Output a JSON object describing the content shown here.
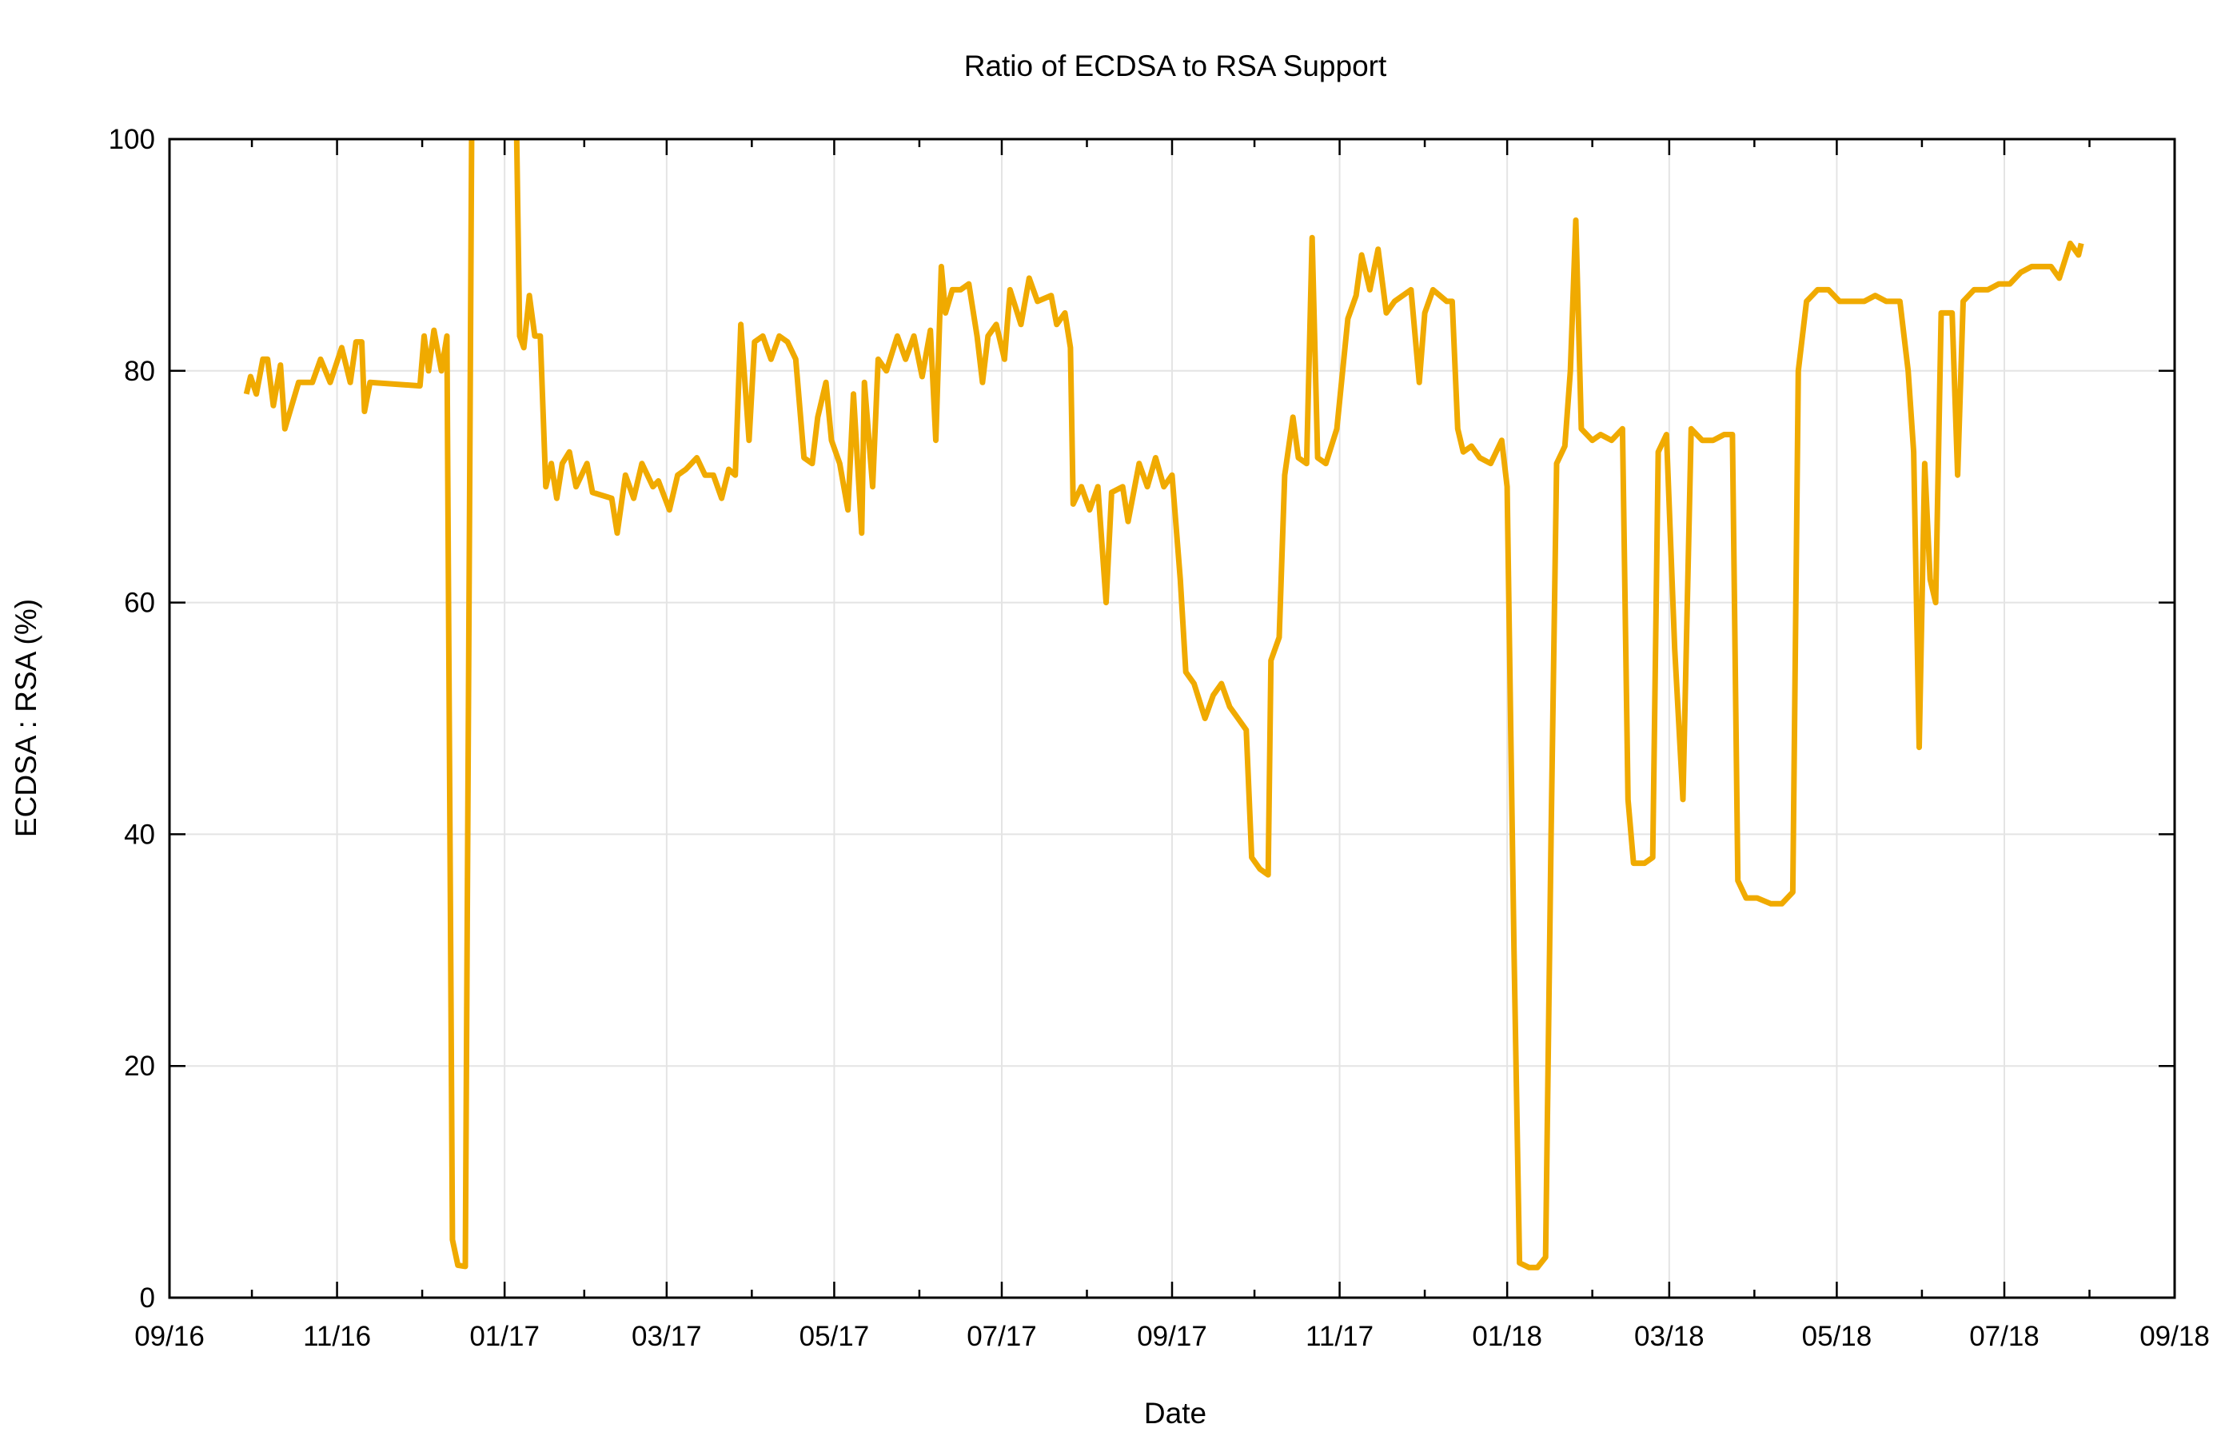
{
  "chart_data": {
    "type": "line",
    "title": "Ratio of ECDSA to RSA Support",
    "xlabel": "Date",
    "ylabel": "ECDSA : RSA (%)",
    "x_units": "days since 09/16 (2016-09-01)",
    "xlim": [
      0,
      730
    ],
    "ylim": [
      0,
      100
    ],
    "grid": true,
    "legend": "none",
    "line_color": "#f0aa00",
    "x_ticks": [
      {
        "label": "09/16",
        "day": 0
      },
      {
        "label": "11/16",
        "day": 61
      },
      {
        "label": "01/17",
        "day": 122
      },
      {
        "label": "03/17",
        "day": 181
      },
      {
        "label": "05/17",
        "day": 242
      },
      {
        "label": "07/17",
        "day": 303
      },
      {
        "label": "09/17",
        "day": 365
      },
      {
        "label": "11/17",
        "day": 426
      },
      {
        "label": "01/18",
        "day": 487
      },
      {
        "label": "03/18",
        "day": 546
      },
      {
        "label": "05/18",
        "day": 607
      },
      {
        "label": "07/18",
        "day": 668
      },
      {
        "label": "09/18",
        "day": 730
      }
    ],
    "minor_x_days": [
      30,
      92,
      151,
      212,
      273,
      334,
      395,
      457,
      518,
      577,
      638,
      699
    ],
    "y_ticks": [
      0,
      20,
      40,
      60,
      80,
      100
    ],
    "series": [
      {
        "name": "ECDSA:RSA",
        "points": [
          [
            28,
            78
          ],
          [
            29.5,
            79.5
          ],
          [
            31.6,
            78
          ],
          [
            34,
            81
          ],
          [
            35.7,
            81
          ],
          [
            37.8,
            77
          ],
          [
            40.4,
            80.5
          ],
          [
            42,
            75
          ],
          [
            44.5,
            77
          ],
          [
            47,
            79
          ],
          [
            52,
            79
          ],
          [
            55,
            81
          ],
          [
            58.5,
            79
          ],
          [
            62.7,
            82
          ],
          [
            65.8,
            79
          ],
          [
            67.9,
            82.5
          ],
          [
            70,
            82.5
          ],
          [
            71,
            76.5
          ],
          [
            73,
            79
          ],
          [
            91.2,
            78.7
          ],
          [
            92.7,
            83
          ],
          [
            94.3,
            80
          ],
          [
            96.3,
            83.5
          ],
          [
            99,
            80
          ],
          [
            101,
            83
          ],
          [
            103,
            5
          ],
          [
            105,
            2.8
          ],
          [
            107.7,
            2.7
          ],
          [
            110,
            100
          ],
          [
            118,
            130
          ],
          [
            126.4,
            100
          ],
          [
            127.5,
            83
          ],
          [
            129,
            82
          ],
          [
            131,
            86.5
          ],
          [
            133,
            83
          ],
          [
            135,
            83
          ],
          [
            137,
            70
          ],
          [
            139,
            72
          ],
          [
            141,
            69
          ],
          [
            143,
            72
          ],
          [
            145.6,
            73
          ],
          [
            148,
            70
          ],
          [
            152,
            72
          ],
          [
            154,
            69.5
          ],
          [
            161,
            69
          ],
          [
            163,
            66
          ],
          [
            166,
            71
          ],
          [
            169,
            69
          ],
          [
            172,
            72
          ],
          [
            176,
            70
          ],
          [
            178,
            70.5
          ],
          [
            182,
            68
          ],
          [
            185,
            71
          ],
          [
            188,
            71.5
          ],
          [
            192,
            72.5
          ],
          [
            195,
            71
          ],
          [
            198,
            71
          ],
          [
            201,
            69
          ],
          [
            203.6,
            71.5
          ],
          [
            206,
            71
          ],
          [
            208,
            84
          ],
          [
            211,
            74
          ],
          [
            213,
            82.5
          ],
          [
            216,
            83
          ],
          [
            219,
            81
          ],
          [
            222,
            83
          ],
          [
            225,
            82.5
          ],
          [
            228,
            81
          ],
          [
            231,
            72.5
          ],
          [
            234,
            72
          ],
          [
            236,
            76
          ],
          [
            239,
            79
          ],
          [
            241,
            74
          ],
          [
            244,
            72
          ],
          [
            247,
            68
          ],
          [
            249,
            78
          ],
          [
            252,
            66
          ],
          [
            253,
            79
          ],
          [
            256,
            70
          ],
          [
            258,
            81
          ],
          [
            261,
            80
          ],
          [
            265,
            83
          ],
          [
            268,
            81
          ],
          [
            271,
            83
          ],
          [
            274,
            79.5
          ],
          [
            277,
            83.5
          ],
          [
            279,
            74
          ],
          [
            281,
            89
          ],
          [
            282.5,
            85
          ],
          [
            285,
            87
          ],
          [
            288,
            87
          ],
          [
            291,
            87.5
          ],
          [
            294,
            83
          ],
          [
            296,
            79
          ],
          [
            298,
            83
          ],
          [
            301,
            84
          ],
          [
            304,
            81
          ],
          [
            306,
            87
          ],
          [
            310,
            84
          ],
          [
            313,
            88
          ],
          [
            316,
            86
          ],
          [
            321,
            86.5
          ],
          [
            323,
            84
          ],
          [
            326,
            85
          ],
          [
            328,
            82
          ],
          [
            329,
            68.5
          ],
          [
            332,
            70
          ],
          [
            335,
            68
          ],
          [
            338,
            70
          ],
          [
            341,
            60
          ],
          [
            343,
            69.5
          ],
          [
            347,
            70
          ],
          [
            349,
            67
          ],
          [
            353,
            72
          ],
          [
            356,
            70
          ],
          [
            359,
            72.5
          ],
          [
            362,
            70
          ],
          [
            365,
            71
          ],
          [
            368,
            62
          ],
          [
            370,
            54
          ],
          [
            373,
            53
          ],
          [
            377,
            50
          ],
          [
            380,
            52
          ],
          [
            383,
            53
          ],
          [
            386,
            51
          ],
          [
            389,
            50
          ],
          [
            392,
            49
          ],
          [
            394,
            38
          ],
          [
            397,
            37
          ],
          [
            400,
            36.5
          ],
          [
            401,
            55
          ],
          [
            404,
            57
          ],
          [
            406,
            71
          ],
          [
            409,
            76
          ],
          [
            411,
            72.5
          ],
          [
            414,
            72
          ],
          [
            416,
            91.5
          ],
          [
            418,
            72.5
          ],
          [
            421,
            72
          ],
          [
            425,
            75
          ],
          [
            429,
            84.5
          ],
          [
            432,
            86.5
          ],
          [
            434,
            90
          ],
          [
            437,
            87
          ],
          [
            440,
            90.5
          ],
          [
            443,
            85
          ],
          [
            446,
            86
          ],
          [
            449,
            86.5
          ],
          [
            452,
            87
          ],
          [
            455,
            79
          ],
          [
            457,
            85
          ],
          [
            460,
            87
          ],
          [
            465,
            86
          ],
          [
            467,
            86
          ],
          [
            469,
            75
          ],
          [
            471,
            73
          ],
          [
            474,
            73.5
          ],
          [
            477,
            72.5
          ],
          [
            481,
            72
          ],
          [
            485,
            74
          ],
          [
            487,
            70
          ],
          [
            489.5,
            30
          ],
          [
            491.5,
            3
          ],
          [
            495,
            2.6
          ],
          [
            498,
            2.6
          ],
          [
            501,
            3.5
          ],
          [
            503,
            40
          ],
          [
            505,
            72
          ],
          [
            508,
            73.5
          ],
          [
            510,
            80
          ],
          [
            512,
            93
          ],
          [
            514,
            75
          ],
          [
            518,
            74
          ],
          [
            521,
            74.5
          ],
          [
            525,
            74
          ],
          [
            529,
            75
          ],
          [
            531,
            43
          ],
          [
            533,
            37.5
          ],
          [
            537,
            37.5
          ],
          [
            540,
            38
          ],
          [
            542,
            73
          ],
          [
            545,
            74.5
          ],
          [
            548,
            56
          ],
          [
            551,
            43
          ],
          [
            554,
            75
          ],
          [
            558,
            74
          ],
          [
            562,
            74
          ],
          [
            566,
            74.5
          ],
          [
            569,
            74.5
          ],
          [
            571,
            36
          ],
          [
            574,
            34.5
          ],
          [
            578,
            34.5
          ],
          [
            583,
            34
          ],
          [
            587,
            34
          ],
          [
            591,
            35
          ],
          [
            593,
            80
          ],
          [
            596,
            86
          ],
          [
            600,
            87
          ],
          [
            604,
            87
          ],
          [
            608,
            86
          ],
          [
            612,
            86
          ],
          [
            617,
            86
          ],
          [
            621,
            86.5
          ],
          [
            625,
            86
          ],
          [
            630,
            86
          ],
          [
            633,
            80
          ],
          [
            635,
            73
          ],
          [
            637,
            47.5
          ],
          [
            639,
            72
          ],
          [
            641,
            62
          ],
          [
            643,
            60
          ],
          [
            645,
            85
          ],
          [
            649,
            85
          ],
          [
            651,
            71
          ],
          [
            653,
            86
          ],
          [
            657,
            87
          ],
          [
            662,
            87
          ],
          [
            666,
            87.5
          ],
          [
            670,
            87.5
          ],
          [
            674,
            88.5
          ],
          [
            678,
            89
          ],
          [
            682,
            89
          ],
          [
            685,
            89
          ],
          [
            688,
            88
          ],
          [
            692,
            91
          ],
          [
            695,
            90
          ],
          [
            696,
            91
          ]
        ]
      }
    ]
  }
}
